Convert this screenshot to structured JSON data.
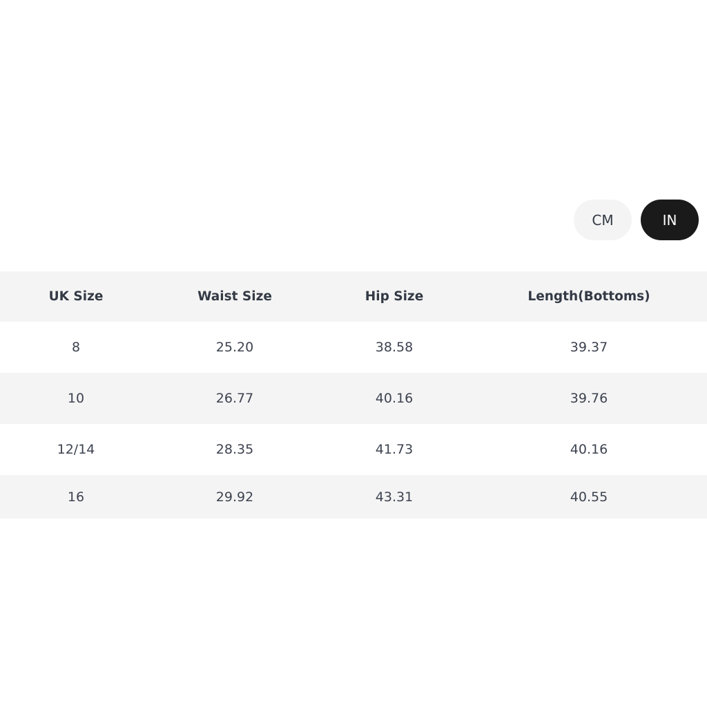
{
  "unit_toggle": {
    "options": [
      {
        "label": "CM",
        "selected": false
      },
      {
        "label": "IN",
        "selected": true
      }
    ]
  },
  "size_table": {
    "headers": [
      "UK Size",
      "Waist Size",
      "Hip Size",
      "Length(Bottoms)"
    ],
    "rows": [
      [
        "8",
        "25.20",
        "38.58",
        "39.37"
      ],
      [
        "10",
        "26.77",
        "40.16",
        "39.76"
      ],
      [
        "12/14",
        "28.35",
        "41.73",
        "40.16"
      ],
      [
        "16",
        "29.92",
        "43.31",
        "40.55"
      ]
    ]
  }
}
